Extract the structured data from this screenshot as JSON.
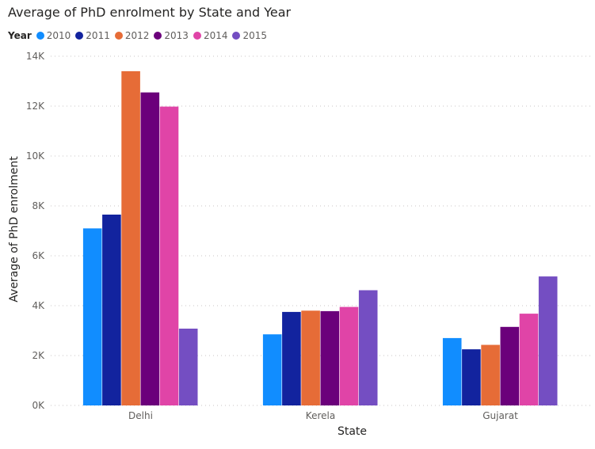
{
  "chart_data": {
    "type": "bar",
    "title": "Average of PhD enrolment by State and Year",
    "legend_title": "Year",
    "legend_position": "top-left",
    "xlabel": "State",
    "ylabel": "Average of PhD enrolment",
    "categories": [
      "Delhi",
      "Kerela",
      "Gujarat"
    ],
    "ylim": [
      0,
      14000
    ],
    "yticks": [
      0,
      2000,
      4000,
      6000,
      8000,
      10000,
      12000,
      14000
    ],
    "ytick_labels": [
      "0K",
      "2K",
      "4K",
      "6K",
      "8K",
      "10K",
      "12K",
      "14K"
    ],
    "grid": true,
    "series": [
      {
        "name": "2010",
        "color": "#118DFF",
        "values": [
          7100,
          2850,
          2700
        ]
      },
      {
        "name": "2011",
        "color": "#12239E",
        "values": [
          7650,
          3750,
          2250
        ]
      },
      {
        "name": "2012",
        "color": "#E66C37",
        "values": [
          13400,
          3800,
          2430
        ]
      },
      {
        "name": "2013",
        "color": "#6B007B",
        "values": [
          12550,
          3780,
          3150
        ]
      },
      {
        "name": "2014",
        "color": "#E044A7",
        "values": [
          11980,
          3950,
          3680
        ]
      },
      {
        "name": "2015",
        "color": "#744EC2",
        "values": [
          3080,
          4620,
          5170
        ]
      }
    ]
  }
}
